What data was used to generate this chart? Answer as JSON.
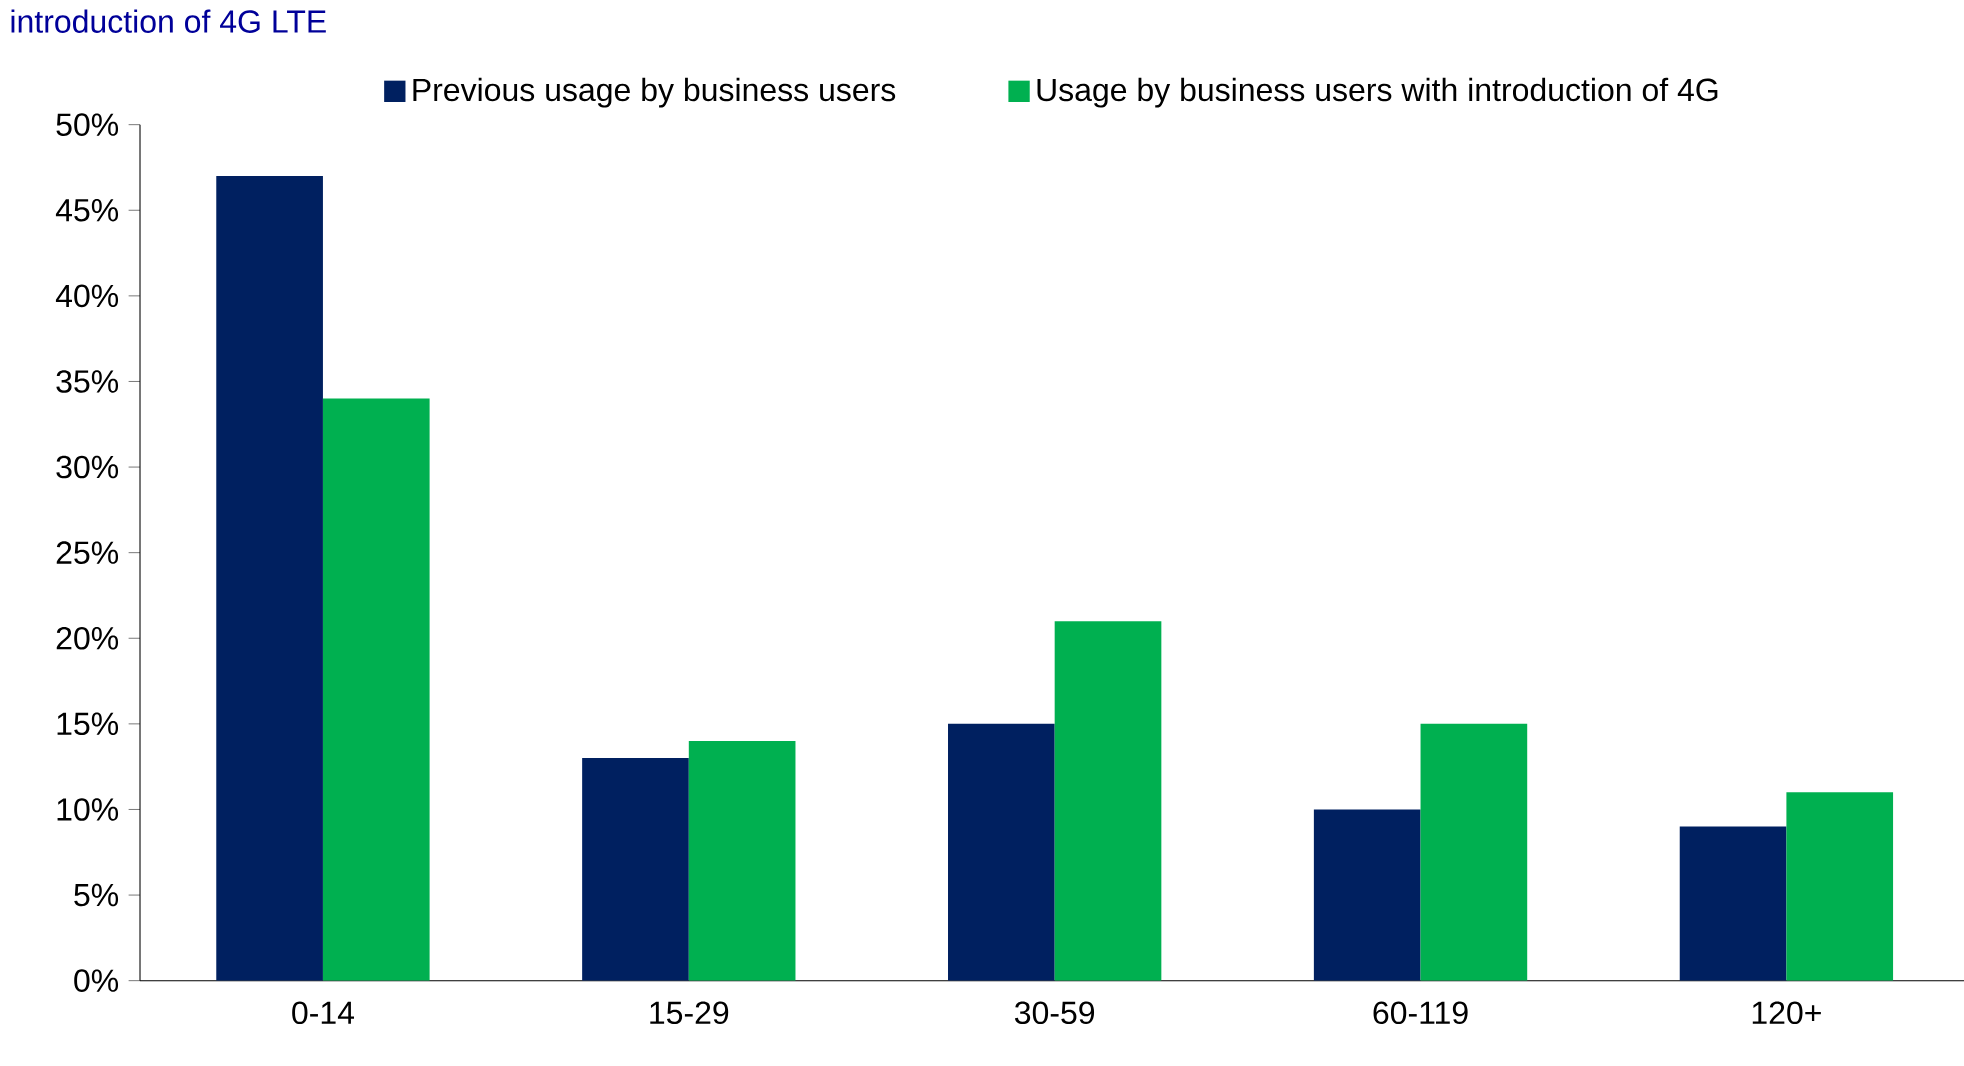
{
  "chart_data": {
    "type": "bar",
    "title": "introduction of 4G LTE",
    "categories": [
      "0-14",
      "15-29",
      "30-59",
      "60-119",
      "120+"
    ],
    "series": [
      {
        "name": "Previous usage by business users",
        "color": "#002060",
        "values": [
          47,
          13,
          15,
          10,
          9
        ]
      },
      {
        "name": "Usage by business users with introduction of 4G",
        "color": "#00b050",
        "values": [
          34,
          14,
          21,
          15,
          11
        ]
      }
    ],
    "ylim": [
      0,
      50
    ],
    "yticks": [
      {
        "value": 0,
        "label": "0%"
      },
      {
        "value": 5,
        "label": "5%"
      },
      {
        "value": 10,
        "label": "10%"
      },
      {
        "value": 15,
        "label": "15%"
      },
      {
        "value": 20,
        "label": "20%"
      },
      {
        "value": 25,
        "label": "25%"
      },
      {
        "value": 30,
        "label": "30%"
      },
      {
        "value": 35,
        "label": "35%"
      },
      {
        "value": 40,
        "label": "40%"
      },
      {
        "value": 45,
        "label": "45%"
      },
      {
        "value": 50,
        "label": "50%"
      }
    ],
    "legend": "top",
    "grid": false
  }
}
